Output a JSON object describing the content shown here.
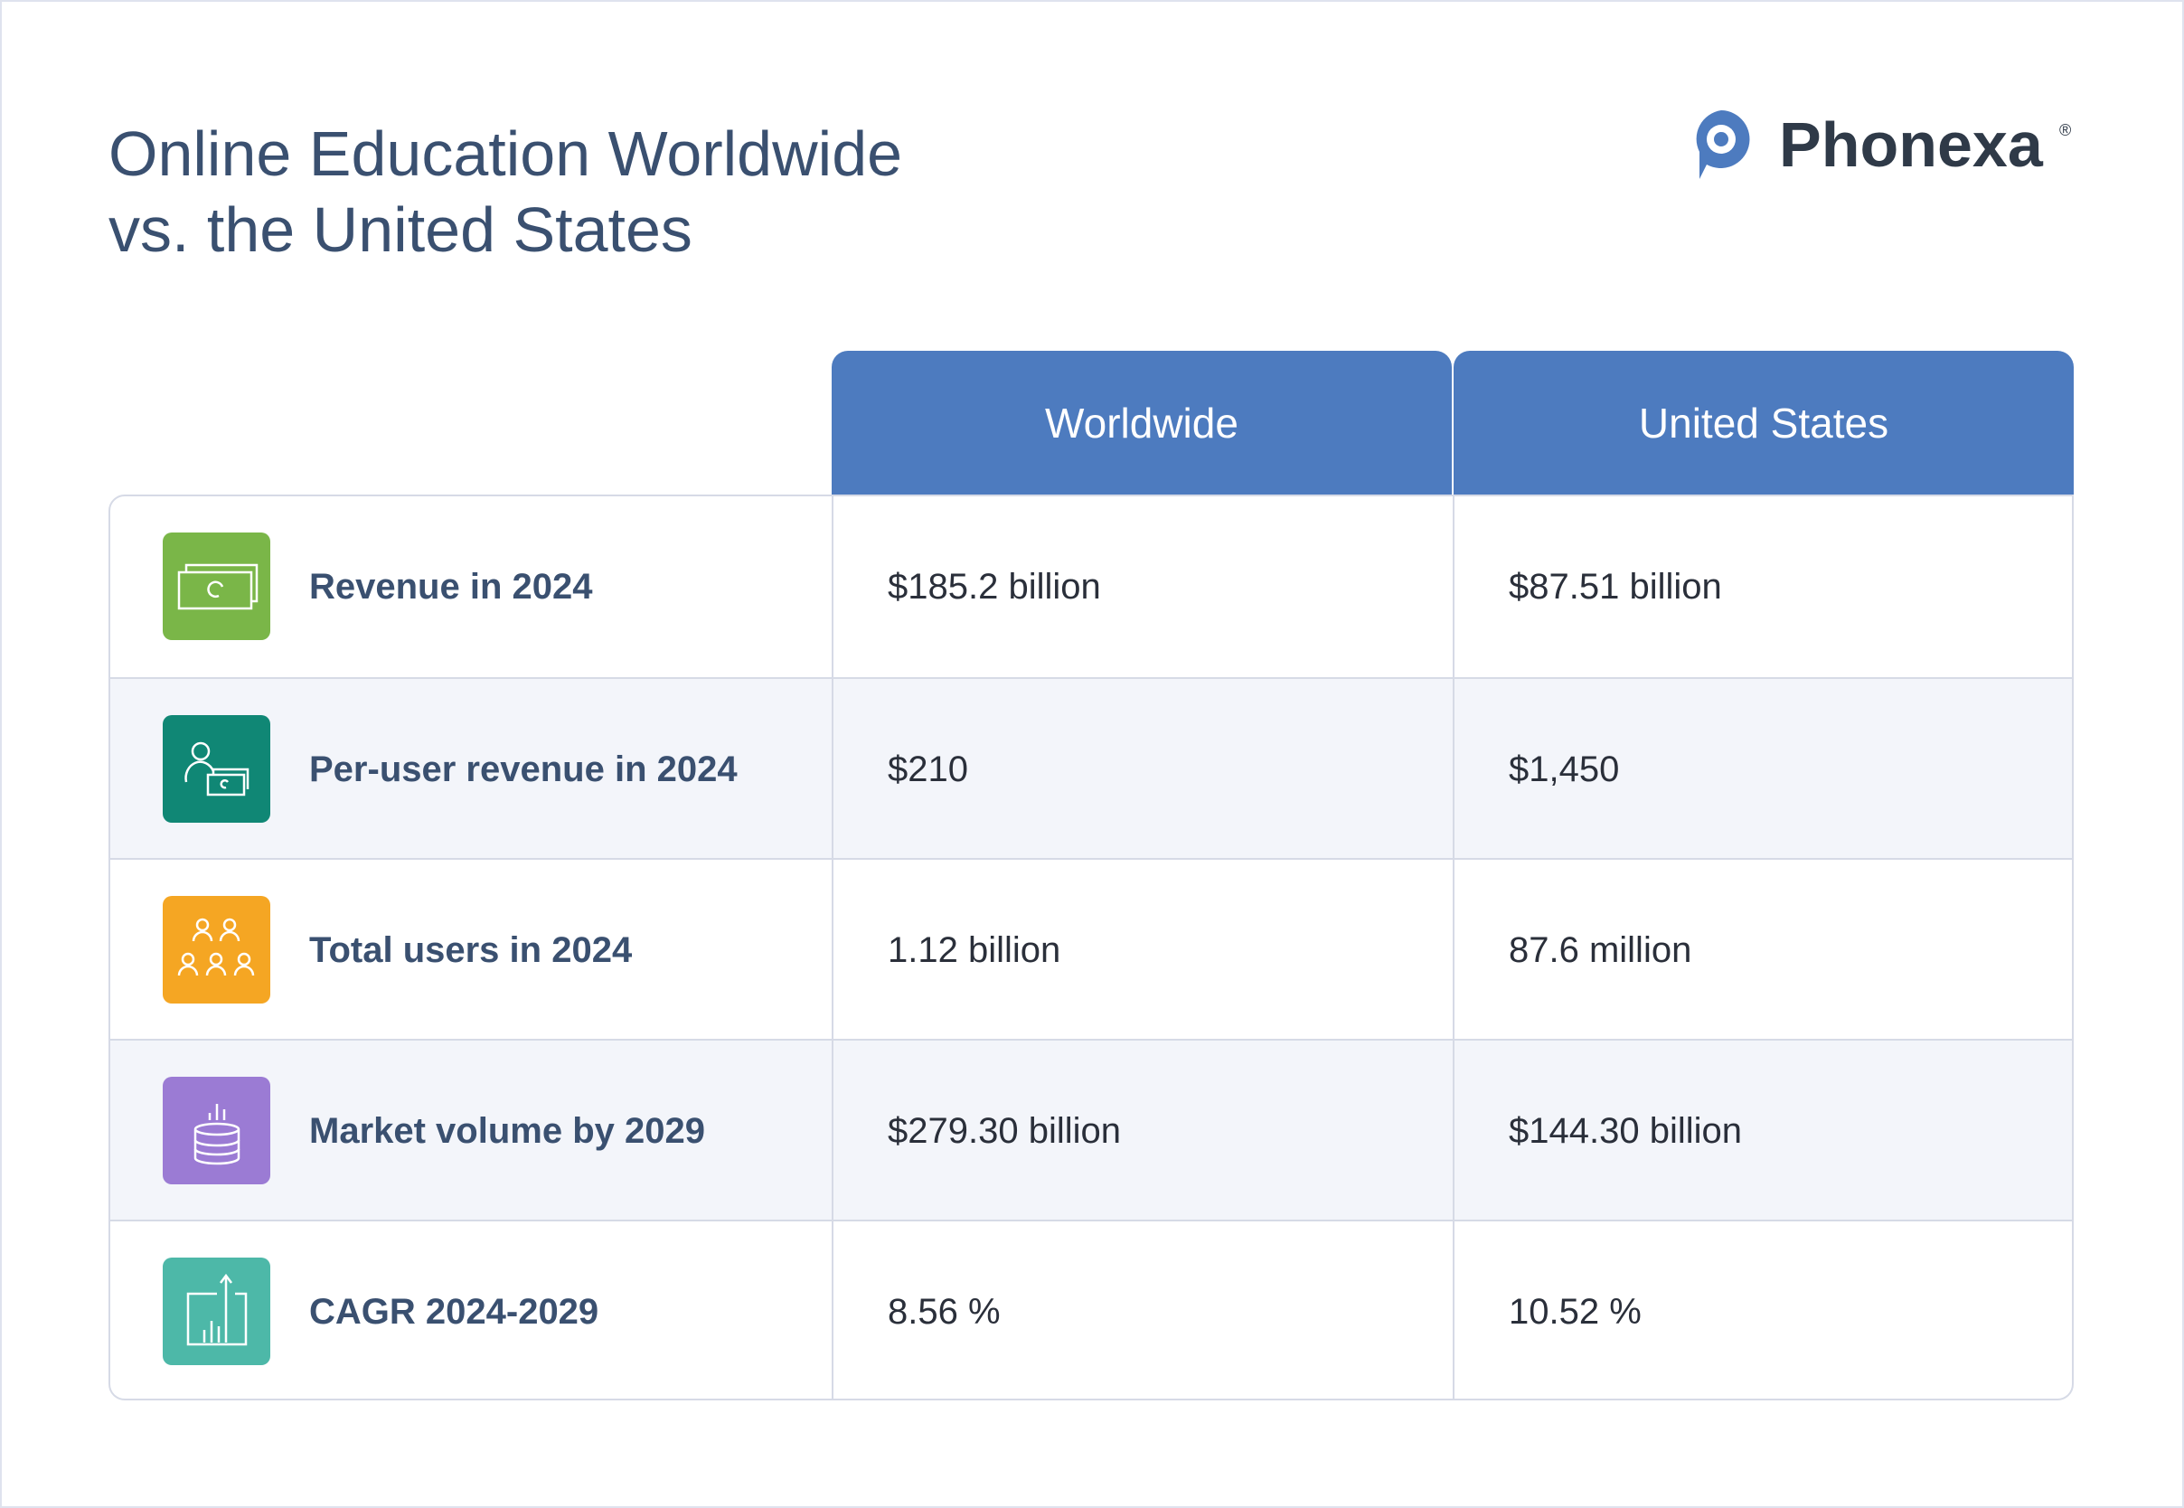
{
  "header": {
    "title_lines": [
      "Online Education Worldwide",
      "vs. the United States"
    ],
    "logo": "Phonexa",
    "logo_mark": "®"
  },
  "table": {
    "columns": [
      "Worldwide",
      "United States"
    ],
    "rows": [
      [
        "Revenue in 2024",
        "$185.2 billion",
        "$87.51 billion"
      ],
      [
        "Per-user revenue in 2024",
        "$210",
        "$1,450"
      ],
      [
        "Total users in 2024",
        "1.12 billion",
        "87.6 million"
      ],
      [
        "Market volume by 2029",
        "$279.30 billion",
        "$144.30 billion"
      ],
      [
        "CAGR 2024-2029",
        "8.56 %",
        "10.52 %"
      ]
    ]
  }
}
